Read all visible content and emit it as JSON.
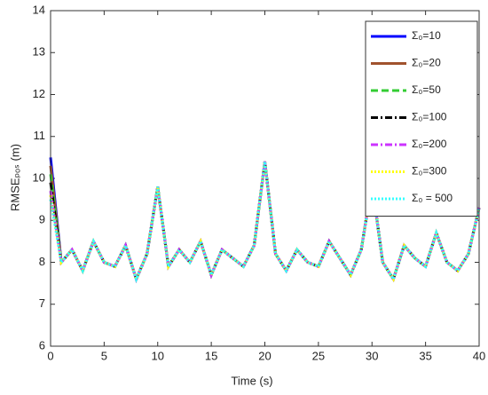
{
  "chart_data": {
    "type": "line",
    "xlabel": "Time (s)",
    "ylabel": "RMSEₚₒₛ (m)",
    "x": [
      0,
      1,
      2,
      3,
      4,
      5,
      6,
      7,
      8,
      9,
      10,
      11,
      12,
      13,
      14,
      15,
      16,
      17,
      18,
      19,
      20,
      21,
      22,
      23,
      24,
      25,
      26,
      27,
      28,
      29,
      30,
      31,
      32,
      33,
      34,
      35,
      36,
      37,
      38,
      39,
      40
    ],
    "xlim": [
      0,
      40
    ],
    "ylim": [
      6,
      14
    ],
    "xticks": [
      0,
      5,
      10,
      15,
      20,
      25,
      30,
      35,
      40
    ],
    "yticks": [
      6,
      7,
      8,
      9,
      10,
      11,
      12,
      13,
      14
    ],
    "legend": "upper right",
    "series": [
      {
        "name": "Σ₀=10",
        "color": "#0000ff",
        "style": "solid",
        "values": [
          10.5,
          8.0,
          8.3,
          7.8,
          8.5,
          8.0,
          7.9,
          8.4,
          7.6,
          8.2,
          9.8,
          7.9,
          8.3,
          8.0,
          8.5,
          7.7,
          8.3,
          8.1,
          7.9,
          8.4,
          10.4,
          8.2,
          7.8,
          8.3,
          8.0,
          7.9,
          8.5,
          8.1,
          7.7,
          8.3,
          9.9,
          8.0,
          7.6,
          8.4,
          8.1,
          7.9,
          8.7,
          8.0,
          7.8,
          8.2,
          9.3
        ]
      },
      {
        "name": "Σ₀=20",
        "color": "#a0522d",
        "style": "solid",
        "values": [
          10.3,
          8.0,
          8.3,
          7.8,
          8.5,
          8.0,
          7.9,
          8.4,
          7.6,
          8.2,
          9.8,
          7.9,
          8.3,
          8.0,
          8.5,
          7.7,
          8.3,
          8.1,
          7.9,
          8.4,
          10.4,
          8.2,
          7.8,
          8.3,
          8.0,
          7.9,
          8.5,
          8.1,
          7.7,
          8.3,
          9.9,
          8.0,
          7.6,
          8.4,
          8.1,
          7.9,
          8.7,
          8.0,
          7.8,
          8.2,
          9.3
        ]
      },
      {
        "name": "Σ₀=50",
        "color": "#33cc33",
        "style": "dashed",
        "values": [
          10.1,
          8.0,
          8.3,
          7.8,
          8.5,
          8.0,
          7.9,
          8.4,
          7.6,
          8.2,
          9.8,
          7.9,
          8.3,
          8.0,
          8.5,
          7.7,
          8.3,
          8.1,
          7.9,
          8.4,
          10.4,
          8.2,
          7.8,
          8.3,
          8.0,
          7.9,
          8.5,
          8.1,
          7.7,
          8.3,
          9.9,
          8.0,
          7.6,
          8.4,
          8.1,
          7.9,
          8.7,
          8.0,
          7.8,
          8.2,
          9.3
        ]
      },
      {
        "name": "Σ₀=100",
        "color": "#000000",
        "style": "dashdot",
        "values": [
          9.9,
          8.0,
          8.3,
          7.8,
          8.5,
          8.0,
          7.9,
          8.4,
          7.6,
          8.2,
          9.8,
          7.9,
          8.3,
          8.0,
          8.5,
          7.7,
          8.3,
          8.1,
          7.9,
          8.4,
          10.4,
          8.2,
          7.8,
          8.3,
          8.0,
          7.9,
          8.5,
          8.1,
          7.7,
          8.3,
          9.9,
          8.0,
          7.6,
          8.4,
          8.1,
          7.9,
          8.7,
          8.0,
          7.8,
          8.2,
          9.3
        ]
      },
      {
        "name": "Σ₀=200",
        "color": "#cc33ff",
        "style": "dashdot",
        "values": [
          9.7,
          8.0,
          8.3,
          7.8,
          8.5,
          8.0,
          7.9,
          8.4,
          7.6,
          8.2,
          9.8,
          7.9,
          8.3,
          8.0,
          8.5,
          7.7,
          8.3,
          8.1,
          7.9,
          8.4,
          10.4,
          8.2,
          7.8,
          8.3,
          8.0,
          7.9,
          8.5,
          8.1,
          7.7,
          8.3,
          9.9,
          8.0,
          7.6,
          8.4,
          8.1,
          7.9,
          8.7,
          8.0,
          7.8,
          8.2,
          9.3
        ]
      },
      {
        "name": "Σ₀=300",
        "color": "#ffff00",
        "style": "dotted",
        "values": [
          9.6,
          8.0,
          8.3,
          7.8,
          8.5,
          8.0,
          7.9,
          8.4,
          7.6,
          8.2,
          9.8,
          7.9,
          8.3,
          8.0,
          8.5,
          7.7,
          8.3,
          8.1,
          7.9,
          8.4,
          10.4,
          8.2,
          7.8,
          8.3,
          8.0,
          7.9,
          8.5,
          8.1,
          7.7,
          8.3,
          9.9,
          8.0,
          7.6,
          8.4,
          8.1,
          7.9,
          8.7,
          8.0,
          7.8,
          8.2,
          9.3
        ]
      },
      {
        "name": "Σ₀ = 500",
        "color": "#33ffff",
        "style": "dotted",
        "values": [
          9.5,
          8.0,
          8.3,
          7.8,
          8.5,
          8.0,
          7.9,
          8.4,
          7.6,
          8.2,
          9.8,
          7.9,
          8.3,
          8.0,
          8.5,
          7.7,
          8.3,
          8.1,
          7.9,
          8.4,
          10.4,
          8.2,
          7.8,
          8.3,
          8.0,
          7.9,
          8.5,
          8.1,
          7.7,
          8.3,
          9.9,
          8.0,
          7.6,
          8.4,
          8.1,
          7.9,
          8.7,
          8.0,
          7.8,
          8.2,
          9.3
        ]
      }
    ]
  }
}
